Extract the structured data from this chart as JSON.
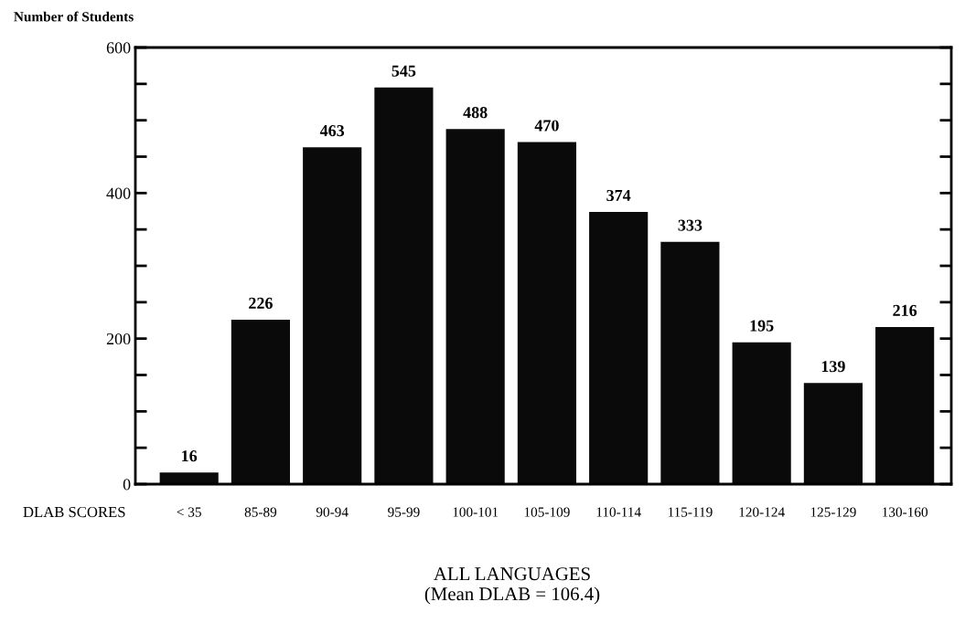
{
  "chart_data": {
    "type": "bar",
    "title": "ALL LANGUAGES",
    "subtitle": "(Mean DLAB = 106.4)",
    "xlabel": "DLAB SCORES",
    "ylabel": "Number of Students",
    "categories": [
      "< 35",
      "85-89",
      "90-94",
      "95-99",
      "100-101",
      "105-109",
      "110-114",
      "115-119",
      "120-124",
      "125-129",
      "130-160"
    ],
    "values": [
      16,
      226,
      463,
      545,
      488,
      470,
      374,
      333,
      195,
      139,
      216
    ],
    "color": "#0a0a0a",
    "data_labels": true,
    "ylim": [
      0,
      600
    ],
    "yticks": [
      0,
      {
        "value": 50,
        "label": null
      },
      {
        "value": 100,
        "label": null
      },
      {
        "value": 150,
        "label": null
      },
      200,
      {
        "value": 250,
        "label": null
      },
      {
        "value": 300,
        "label": null
      },
      {
        "value": 350,
        "label": null
      },
      400,
      {
        "value": 450,
        "label": null
      },
      {
        "value": 500,
        "label": null
      },
      {
        "value": 550,
        "label": null
      },
      600
    ],
    "grid": false
  }
}
